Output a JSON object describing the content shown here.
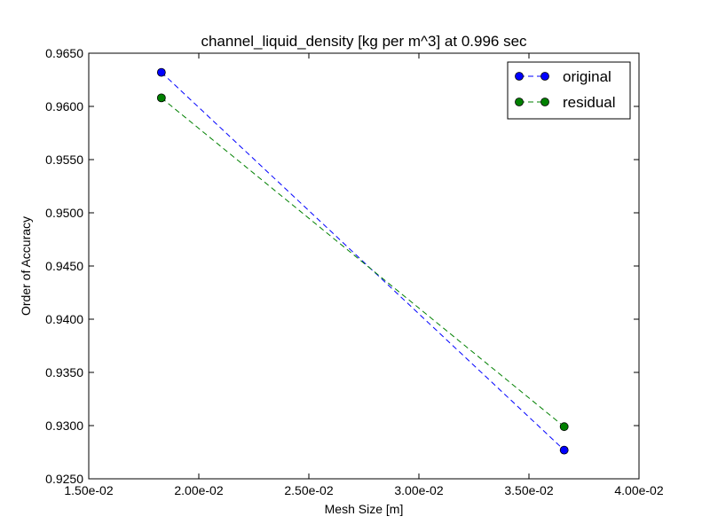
{
  "chart_data": {
    "type": "line",
    "title": "channel_liquid_density [kg per m^3] at 0.996 sec",
    "xlabel": "Mesh Size [m]",
    "ylabel": "Order of Accuracy",
    "xlim": [
      0.015,
      0.04
    ],
    "ylim": [
      0.925,
      0.965
    ],
    "xticks": [
      0.015,
      0.02,
      0.025,
      0.03,
      0.035,
      0.04
    ],
    "xtick_labels": [
      "1.50e-02",
      "2.00e-02",
      "2.50e-02",
      "3.00e-02",
      "3.50e-02",
      "4.00e-02"
    ],
    "yticks": [
      0.925,
      0.93,
      0.935,
      0.94,
      0.945,
      0.95,
      0.955,
      0.96,
      0.965
    ],
    "ytick_labels": [
      "0.9250",
      "0.9300",
      "0.9350",
      "0.9400",
      "0.9450",
      "0.9500",
      "0.9550",
      "0.9600",
      "0.9650"
    ],
    "grid": false,
    "legend_position": "top-right",
    "series": [
      {
        "name": "original",
        "color": "#0000ff",
        "x": [
          0.0183,
          0.0366
        ],
        "y": [
          0.9632,
          0.9277
        ]
      },
      {
        "name": "residual",
        "color": "#008000",
        "x": [
          0.0183,
          0.0366
        ],
        "y": [
          0.9608,
          0.9299
        ]
      }
    ]
  }
}
